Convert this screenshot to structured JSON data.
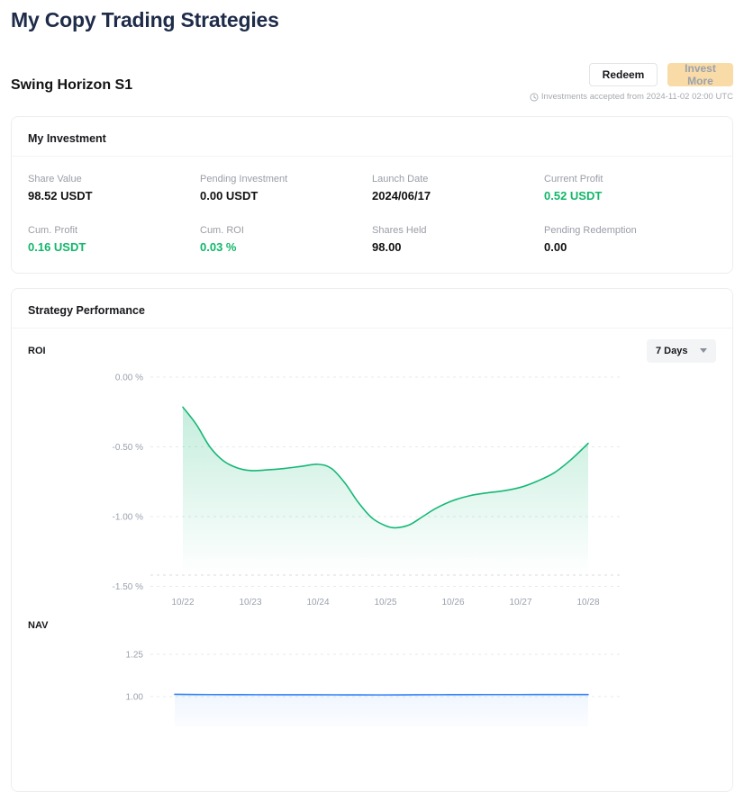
{
  "page": {
    "title": "My Copy Trading Strategies"
  },
  "strategy": {
    "name": "Swing Horizon S1",
    "redeem_label": "Redeem",
    "invest_more_label": "Invest More",
    "notice": "Investments accepted from 2024-11-02 02:00 UTC"
  },
  "investment": {
    "title": "My Investment",
    "stats": [
      {
        "label": "Share Value",
        "value": "98.52 USDT",
        "positive": false
      },
      {
        "label": "Pending Investment",
        "value": "0.00 USDT",
        "positive": false
      },
      {
        "label": "Launch Date",
        "value": "2024/06/17",
        "positive": false
      },
      {
        "label": "Current Profit",
        "value": "0.52 USDT",
        "positive": true
      },
      {
        "label": "Cum. Profit",
        "value": "0.16 USDT",
        "positive": true
      },
      {
        "label": "Cum. ROI",
        "value": "0.03 %",
        "positive": true
      },
      {
        "label": "Shares Held",
        "value": "98.00",
        "positive": false
      },
      {
        "label": "Pending Redemption",
        "value": "0.00",
        "positive": false
      }
    ]
  },
  "performance": {
    "title": "Strategy Performance",
    "range_selector": {
      "value": "7 Days"
    },
    "roi_label": "ROI",
    "nav_label": "NAV"
  },
  "colors": {
    "green_text": "#12b76a",
    "roi_line": "#15b877",
    "nav_line": "#2f81f7",
    "title_navy": "#1e2b49",
    "disabled_button_bg": "#f8dba6"
  },
  "chart_data": [
    {
      "id": "roi",
      "type": "area",
      "title": "ROI",
      "unit": "%",
      "line_color": "#15b877",
      "fill_from": "rgba(21,184,119,0.25)",
      "fill_to": "rgba(21,184,119,0)",
      "x_labels": [
        "10/22",
        "10/23",
        "10/24",
        "10/25",
        "10/26",
        "10/27",
        "10/28"
      ],
      "yticks": [
        {
          "value": 0,
          "label": "0.00 %"
        },
        {
          "value": -0.5,
          "label": "-0.50 %"
        },
        {
          "value": -1.0,
          "label": "-1.00 %"
        },
        {
          "value": -1.5,
          "label": "-1.50 %"
        }
      ],
      "ylim": [
        -1.5,
        0
      ],
      "grid": true,
      "points": [
        [
          0,
          -0.215
        ],
        [
          0.2,
          -0.34
        ],
        [
          0.4,
          -0.5
        ],
        [
          0.6,
          -0.6
        ],
        [
          0.8,
          -0.65
        ],
        [
          1.0,
          -0.67
        ],
        [
          1.25,
          -0.665
        ],
        [
          1.5,
          -0.655
        ],
        [
          1.75,
          -0.64
        ],
        [
          2.0,
          -0.625
        ],
        [
          2.2,
          -0.655
        ],
        [
          2.4,
          -0.76
        ],
        [
          2.6,
          -0.9
        ],
        [
          2.8,
          -1.01
        ],
        [
          3.0,
          -1.065
        ],
        [
          3.15,
          -1.08
        ],
        [
          3.35,
          -1.06
        ],
        [
          3.55,
          -1.0
        ],
        [
          3.75,
          -0.94
        ],
        [
          4.0,
          -0.885
        ],
        [
          4.25,
          -0.85
        ],
        [
          4.5,
          -0.83
        ],
        [
          4.75,
          -0.815
        ],
        [
          5.0,
          -0.79
        ],
        [
          5.25,
          -0.745
        ],
        [
          5.5,
          -0.685
        ],
        [
          5.75,
          -0.59
        ],
        [
          6.0,
          -0.475
        ]
      ]
    },
    {
      "id": "nav",
      "type": "area",
      "title": "NAV",
      "unit": "",
      "line_color": "#2f81f7",
      "fill_from": "rgba(47,129,247,0.07)",
      "fill_to": "rgba(47,129,247,0.02)",
      "x_labels": [],
      "yticks": [
        {
          "value": 1.25,
          "label": "1.25"
        },
        {
          "value": 1.0,
          "label": "1.00"
        }
      ],
      "ylim": [
        1.0,
        1.25
      ],
      "grid": true,
      "points": [
        [
          0,
          1.0135
        ],
        [
          0.5,
          1.012
        ],
        [
          1,
          1.0115
        ],
        [
          1.5,
          1.011
        ],
        [
          2,
          1.011
        ],
        [
          2.5,
          1.0105
        ],
        [
          3,
          1.01
        ],
        [
          3.5,
          1.011
        ],
        [
          4,
          1.0115
        ],
        [
          4.5,
          1.012
        ],
        [
          5,
          1.012
        ],
        [
          5.5,
          1.0125
        ],
        [
          6,
          1.0125
        ]
      ]
    }
  ]
}
